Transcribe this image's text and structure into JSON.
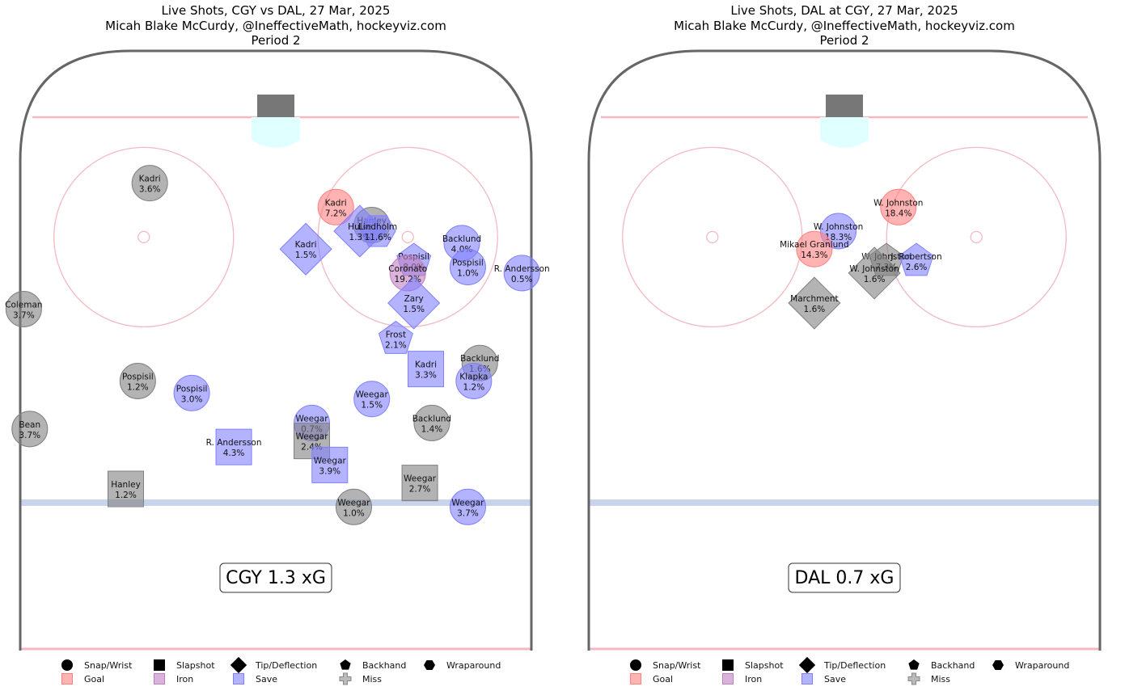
{
  "palette": {
    "Goal": "#ff8080",
    "Iron": "#c080c0",
    "Save": "#8080ff",
    "Miss": "#808080",
    "boards": "#666666",
    "red_line": "#f4b8c0",
    "blue_line": "#c8d4ec",
    "crease": "#e0ffff",
    "net": "#777777"
  },
  "legend": {
    "shapes": [
      {
        "shape": "Snap/Wrist",
        "label": "Snap/Wrist"
      },
      {
        "shape": "Slapshot",
        "label": "Slapshot"
      },
      {
        "shape": "Tip/Deflection",
        "label": "Tip/Deflection"
      },
      {
        "shape": "Backhand",
        "label": "Backhand"
      },
      {
        "shape": "Wraparound",
        "label": "Wraparound"
      }
    ],
    "results": [
      {
        "result": "Goal",
        "label": "Goal"
      },
      {
        "result": "Iron",
        "label": "Iron"
      },
      {
        "result": "Save",
        "label": "Save"
      },
      {
        "result": "Miss",
        "label": "Miss"
      }
    ]
  },
  "chart_data": [
    {
      "type": "scatter",
      "title": "Live Shots, CGY vs DAL, 27 Mar, 2025",
      "subtitle": "Micah Blake McCurdy, @IneffectiveMath, hockeyviz.com",
      "period": "Period 2",
      "xg_label": "CGY 1.3 xG",
      "shots": [
        {
          "player": "Kadri",
          "xg": "3.6%",
          "type": "Snap/Wrist",
          "result": "Miss",
          "x": -21,
          "y": 78
        },
        {
          "player": "Kadri",
          "xg": "7.2%",
          "type": "Snap/Wrist",
          "result": "Goal",
          "x": 10,
          "y": 74
        },
        {
          "player": "Hanley",
          "xg": "",
          "type": "Snap/Wrist",
          "result": "Miss",
          "x": 16,
          "y": 71
        },
        {
          "player": "Hulse",
          "xg": "1.3%",
          "type": "Tip/Deflection",
          "result": "Save",
          "x": 14,
          "y": 70
        },
        {
          "player": "Lindholm",
          "xg": "11.6%",
          "type": "Wraparound",
          "result": "Save",
          "x": 17,
          "y": 70
        },
        {
          "player": "Kadri",
          "xg": "1.5%",
          "type": "Tip/Deflection",
          "result": "Save",
          "x": 5,
          "y": 67
        },
        {
          "player": "Pospisil",
          "xg": "8.0%",
          "type": "Backhand",
          "result": "Save",
          "x": 23,
          "y": 65
        },
        {
          "player": "Coronato",
          "xg": "19.2%",
          "type": "Snap/Wrist",
          "result": "Iron",
          "x": 22,
          "y": 63
        },
        {
          "player": "Backlund",
          "xg": "4.0%",
          "type": "Snap/Wrist",
          "result": "Save",
          "x": 31,
          "y": 68
        },
        {
          "player": "Pospisil",
          "xg": "1.0%",
          "type": "Snap/Wrist",
          "result": "Save",
          "x": 32,
          "y": 64
        },
        {
          "player": "R. Andersson",
          "xg": "0.5%",
          "type": "Snap/Wrist",
          "result": "Save",
          "x": 41,
          "y": 63
        },
        {
          "player": "Coleman",
          "xg": "3.7%",
          "type": "Snap/Wrist",
          "result": "Miss",
          "x": -42,
          "y": 57
        },
        {
          "player": "Zary",
          "xg": "1.5%",
          "type": "Tip/Deflection",
          "result": "Save",
          "x": 23,
          "y": 58
        },
        {
          "player": "Frost",
          "xg": "2.1%",
          "type": "Backhand",
          "result": "Save",
          "x": 20,
          "y": 52
        },
        {
          "player": "Backlund",
          "xg": "1.6%",
          "type": "Snap/Wrist",
          "result": "Miss",
          "x": 34,
          "y": 48
        },
        {
          "player": "Kadri",
          "xg": "3.3%",
          "type": "Slapshot",
          "result": "Save",
          "x": 25,
          "y": 47
        },
        {
          "player": "Klapka",
          "xg": "1.2%",
          "type": "Snap/Wrist",
          "result": "Save",
          "x": 33,
          "y": 45
        },
        {
          "player": "Pospisil",
          "xg": "1.2%",
          "type": "Snap/Wrist",
          "result": "Miss",
          "x": -23,
          "y": 45
        },
        {
          "player": "Pospisil",
          "xg": "3.0%",
          "type": "Snap/Wrist",
          "result": "Save",
          "x": -14,
          "y": 43
        },
        {
          "player": "Weegar",
          "xg": "1.5%",
          "type": "Snap/Wrist",
          "result": "Save",
          "x": 16,
          "y": 42
        },
        {
          "player": "Backlund",
          "xg": "1.4%",
          "type": "Snap/Wrist",
          "result": "Miss",
          "x": 26,
          "y": 38
        },
        {
          "player": "Bean",
          "xg": "3.7%",
          "type": "Snap/Wrist",
          "result": "Miss",
          "x": -41,
          "y": 37
        },
        {
          "player": "Weegar",
          "xg": "0.7%",
          "type": "Snap/Wrist",
          "result": "Save",
          "x": 6,
          "y": 38
        },
        {
          "player": "R. Andersson",
          "xg": "4.3%",
          "type": "Slapshot",
          "result": "Save",
          "x": -7,
          "y": 34
        },
        {
          "player": "Weegar",
          "xg": "2.4%",
          "type": "Slapshot",
          "result": "Miss",
          "x": 6,
          "y": 35
        },
        {
          "player": "Weegar",
          "xg": "3.9%",
          "type": "Slapshot",
          "result": "Save",
          "x": 9,
          "y": 31
        },
        {
          "player": "Weegar",
          "xg": "2.7%",
          "type": "Slapshot",
          "result": "Miss",
          "x": 24,
          "y": 28
        },
        {
          "player": "Hanley",
          "xg": "1.2%",
          "type": "Slapshot",
          "result": "Miss",
          "x": -25,
          "y": 27
        },
        {
          "player": "Weegar",
          "xg": "1.0%",
          "type": "Snap/Wrist",
          "result": "Miss",
          "x": 13,
          "y": 24
        },
        {
          "player": "Weegar",
          "xg": "3.7%",
          "type": "Snap/Wrist",
          "result": "Save",
          "x": 32,
          "y": 24
        }
      ]
    },
    {
      "type": "scatter",
      "title": "Live Shots, DAL at CGY, 27 Mar, 2025",
      "subtitle": "Micah Blake McCurdy, @IneffectiveMath, hockeyviz.com",
      "period": "Period 2",
      "xg_label": "DAL 0.7 xG",
      "shots": [
        {
          "player": "W. Johnston",
          "xg": "18.4%",
          "type": "Snap/Wrist",
          "result": "Goal",
          "x": 9,
          "y": 74
        },
        {
          "player": "W. Johnston",
          "xg": "18.3%",
          "type": "Snap/Wrist",
          "result": "Save",
          "x": -1,
          "y": 70
        },
        {
          "player": "Mikael Granlund",
          "xg": "14.3%",
          "type": "Snap/Wrist",
          "result": "Goal",
          "x": -5,
          "y": 67
        },
        {
          "player": "W. Johnston",
          "xg": "7.3%",
          "type": "Backhand",
          "result": "Miss",
          "x": 7,
          "y": 65
        },
        {
          "player": "J. Robertson",
          "xg": "2.6%",
          "type": "Backhand",
          "result": "Save",
          "x": 12,
          "y": 65
        },
        {
          "player": "W. Johnston",
          "xg": "1.6%",
          "type": "Tip/Deflection",
          "result": "Miss",
          "x": 5,
          "y": 63
        },
        {
          "player": "Marchment",
          "xg": "1.6%",
          "type": "Tip/Deflection",
          "result": "Miss",
          "x": -5,
          "y": 58
        }
      ]
    }
  ]
}
